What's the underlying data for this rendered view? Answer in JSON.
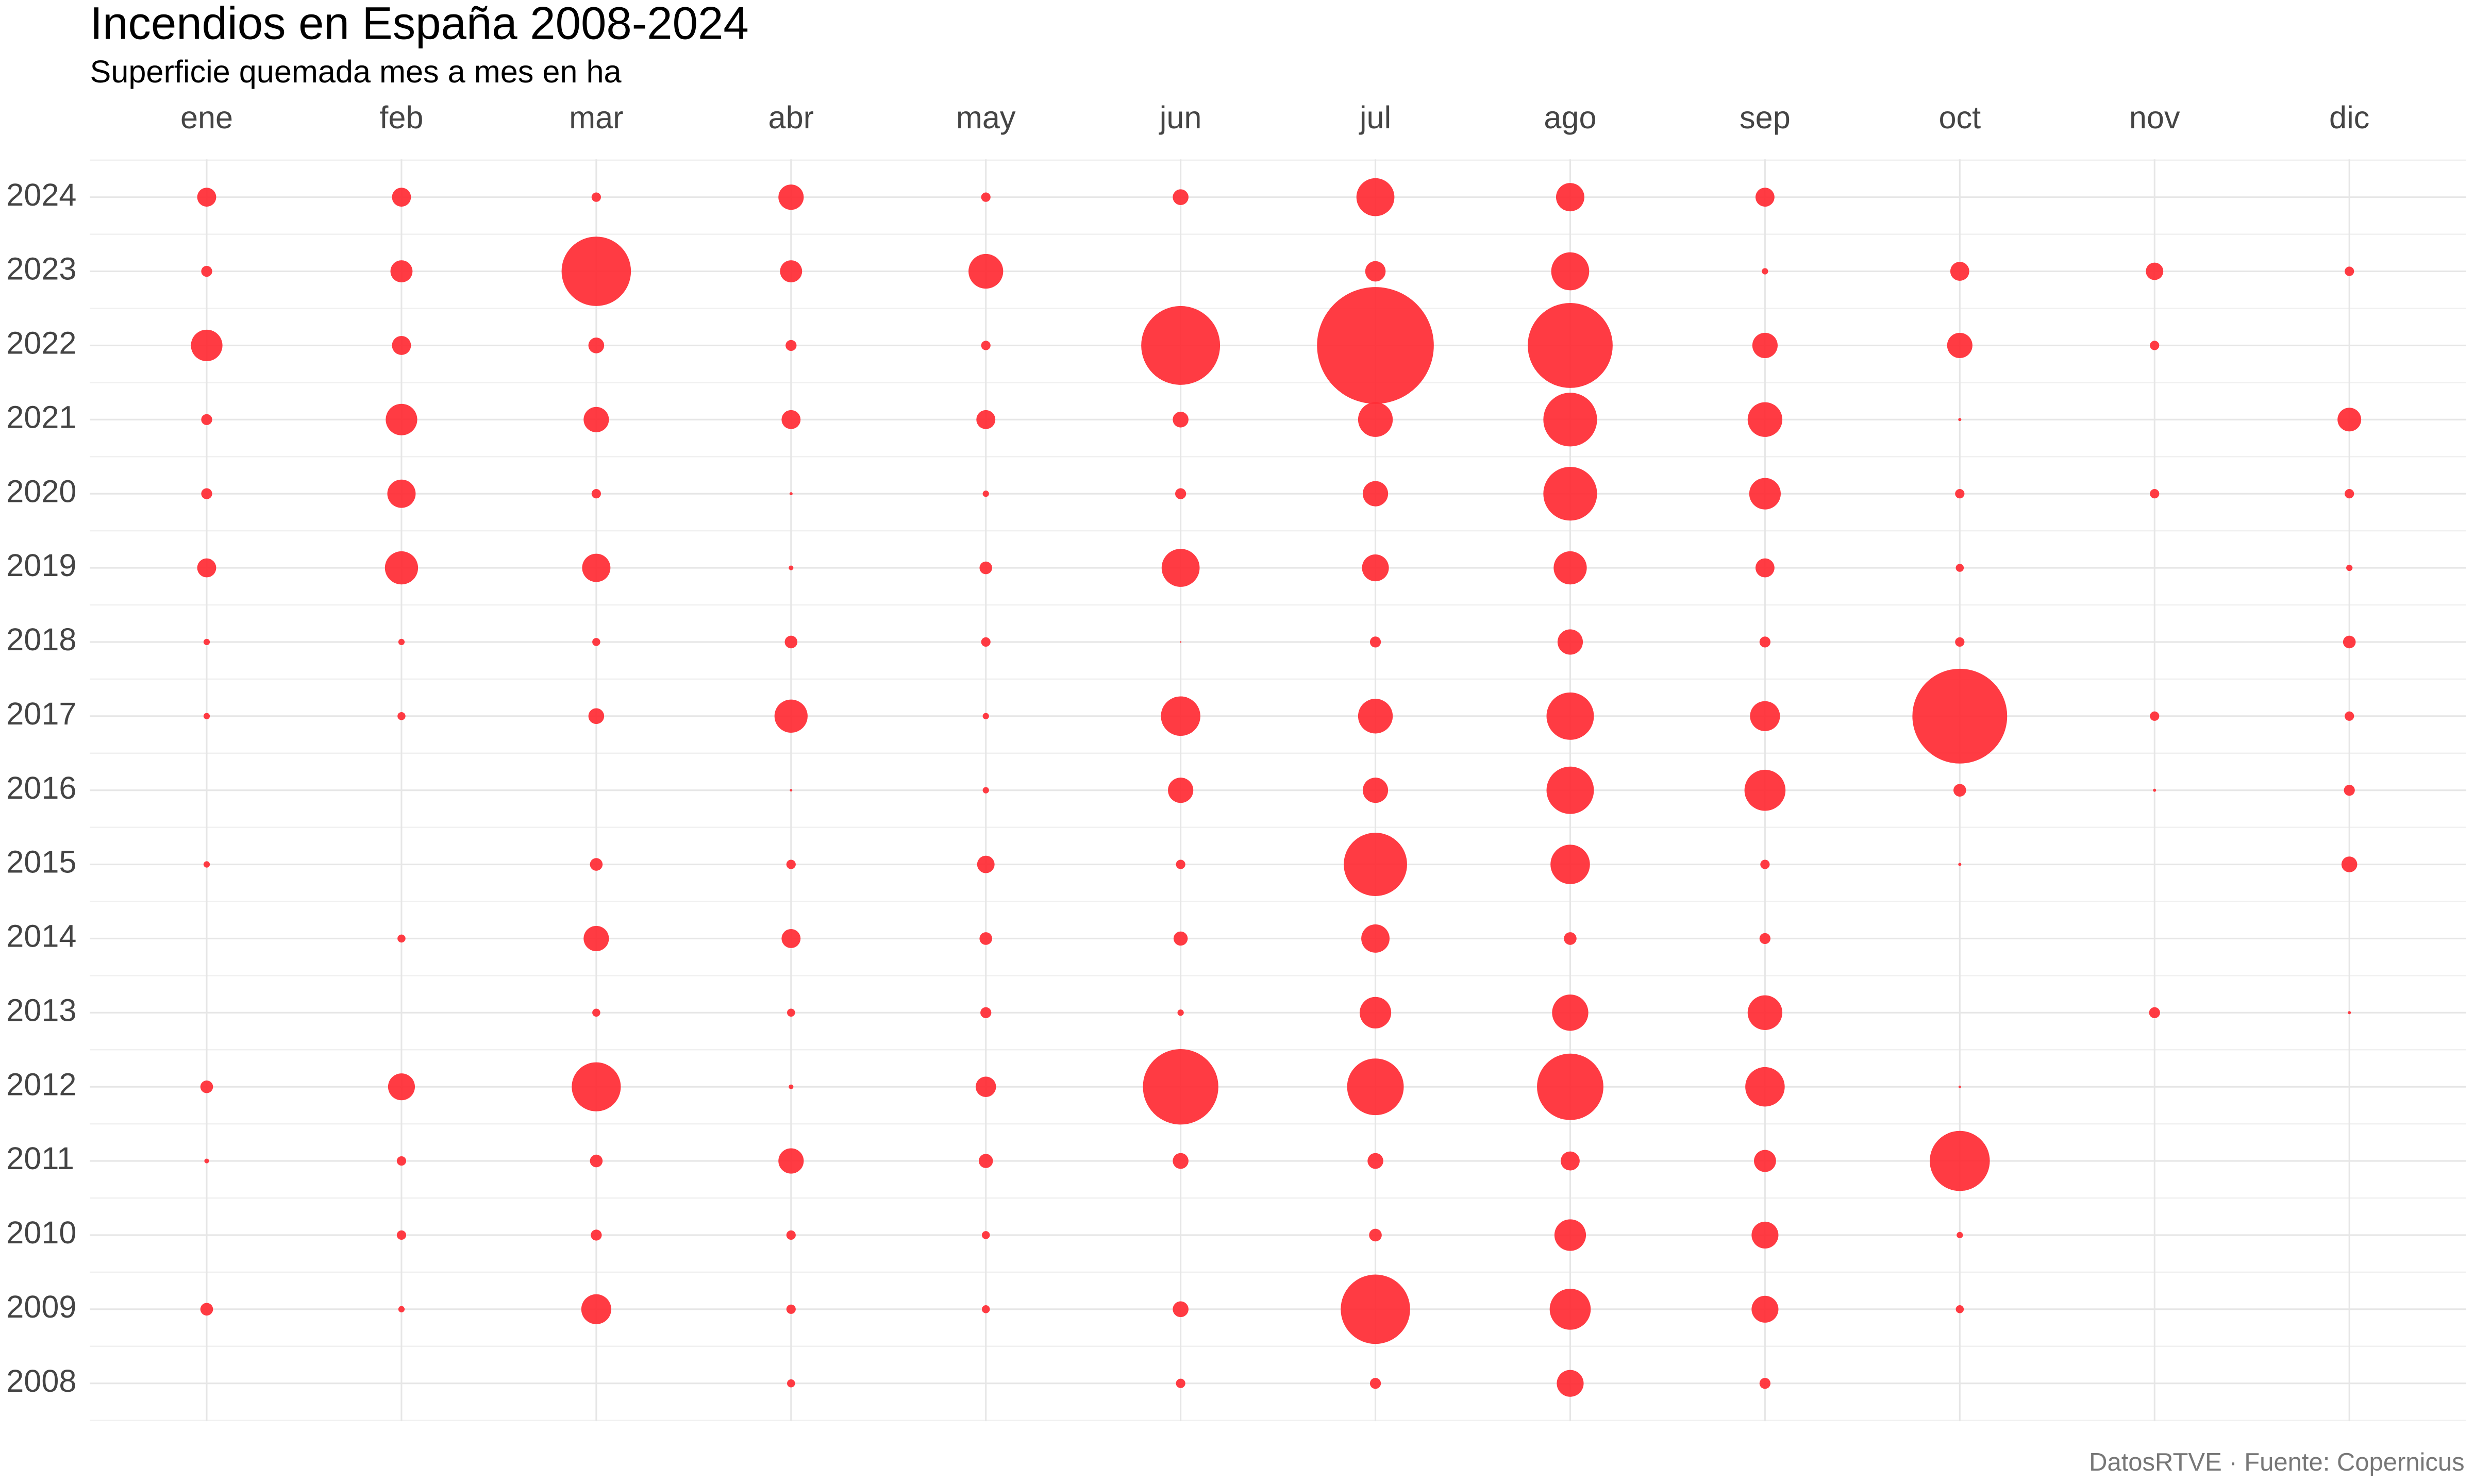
{
  "chart_data": {
    "type": "bubble",
    "title": "Incendios en España 2008-2024",
    "subtitle": "Superficie quemada mes a mes en ha",
    "caption": "DatosRTVE · Fuente: Copernicus",
    "color": "#ff2a33",
    "grid": true,
    "x": [
      "ene",
      "feb",
      "mar",
      "abr",
      "may",
      "jun",
      "jul",
      "ago",
      "sep",
      "oct",
      "nov",
      "dic"
    ],
    "y": [
      2024,
      2023,
      2022,
      2021,
      2020,
      2019,
      2018,
      2017,
      2016,
      2015,
      2014,
      2013,
      2012,
      2011,
      2010,
      2009,
      2008
    ],
    "values": [
      [
        4500,
        4500,
        1100,
        8000,
        1100,
        3100,
        18000,
        10000,
        4500,
        null,
        null,
        null
      ],
      [
        1500,
        6100,
        60000,
        6100,
        15000,
        null,
        5200,
        18000,
        500,
        4500,
        3800,
        1100
      ],
      [
        12400,
        4500,
        3100,
        1500,
        1100,
        77500,
        170000,
        90000,
        8000,
        8000,
        1100,
        null
      ],
      [
        1500,
        12400,
        8000,
        4500,
        4500,
        3100,
        15000,
        36000,
        15000,
        120,
        null,
        7000
      ],
      [
        1500,
        10000,
        1100,
        120,
        500,
        1500,
        8000,
        36000,
        12400,
        1100,
        1100,
        1100
      ],
      [
        4500,
        13700,
        10000,
        280,
        2000,
        18000,
        9000,
        13700,
        4500,
        800,
        null,
        500
      ],
      [
        500,
        500,
        800,
        2000,
        1100,
        30,
        1500,
        8000,
        1500,
        1100,
        null,
        2000
      ],
      [
        500,
        800,
        3100,
        13700,
        500,
        19400,
        15000,
        28000,
        11200,
        112000,
        1100,
        1100
      ],
      [
        null,
        null,
        null,
        80,
        500,
        8000,
        8000,
        28000,
        21000,
        2000,
        120,
        1500
      ],
      [
        500,
        null,
        2000,
        1100,
        3800,
        1100,
        50000,
        19400,
        1100,
        120,
        null,
        3100
      ],
      [
        null,
        800,
        8000,
        4500,
        2000,
        2500,
        10000,
        2000,
        1500,
        null,
        null,
        null
      ],
      [
        null,
        null,
        800,
        800,
        1500,
        500,
        12400,
        16400,
        15000,
        null,
        1500,
        120
      ],
      [
        2000,
        9000,
        30000,
        280,
        5200,
        71000,
        40000,
        55000,
        19400,
        80,
        null,
        null
      ],
      [
        280,
        1100,
        2000,
        8000,
        2500,
        3100,
        3100,
        4500,
        6100,
        45000,
        null,
        null
      ],
      [
        null,
        1100,
        1500,
        1100,
        800,
        null,
        2000,
        12400,
        9000,
        500,
        null,
        null
      ],
      [
        2000,
        500,
        11200,
        1100,
        800,
        3100,
        60000,
        21000,
        9000,
        800,
        null,
        null
      ],
      [
        null,
        null,
        null,
        800,
        null,
        1100,
        1500,
        9000,
        1500,
        null,
        null,
        null
      ]
    ]
  }
}
